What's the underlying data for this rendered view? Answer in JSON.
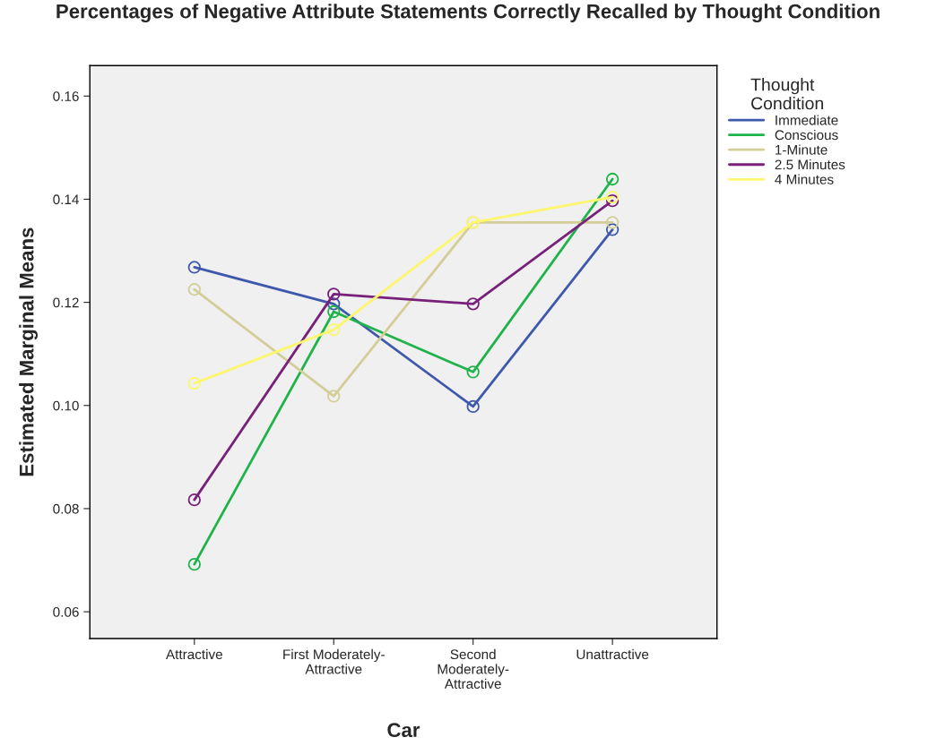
{
  "chart_data": {
    "type": "line",
    "title": "Percentages of Negative Attribute Statements Correctly Recalled by Thought Condition",
    "xlabel": "Car",
    "ylabel": "Estimated Marginal Means",
    "legend_title": "Thought\nCondition",
    "categories": [
      "Attractive",
      "First Moderately-\nAttractive",
      "Second\nModerately-\nAttractive",
      "Unattractive"
    ],
    "series": [
      {
        "name": "Immediate",
        "color": "#3e58ac",
        "values": [
          0.1268,
          0.1197,
          0.0998,
          0.1341
        ]
      },
      {
        "name": "Conscious",
        "color": "#1fb34a",
        "values": [
          0.0692,
          0.1182,
          0.1065,
          0.1439
        ]
      },
      {
        "name": "1-Minute",
        "color": "#d3ce97",
        "values": [
          0.1225,
          0.1018,
          0.1355,
          0.1355
        ]
      },
      {
        "name": "2.5 Minutes",
        "color": "#78217a",
        "values": [
          0.0817,
          0.1216,
          0.1197,
          0.1397
        ]
      },
      {
        "name": "4 Minutes",
        "color": "#fcf76c",
        "values": [
          0.1043,
          0.1147,
          0.1355,
          0.1404
        ]
      }
    ],
    "ylim": [
      0.0548,
      0.1659
    ],
    "yticks": [
      {
        "value": 0.06,
        "label": "0.06"
      },
      {
        "value": 0.08,
        "label": "0.08"
      },
      {
        "value": 0.1,
        "label": "0.10"
      },
      {
        "value": 0.12,
        "label": "0.12"
      },
      {
        "value": 0.14,
        "label": "0.14"
      },
      {
        "value": 0.16,
        "label": "0.16"
      }
    ],
    "marker": "circle",
    "line_style": "solid",
    "legend": "top right",
    "grid": false
  }
}
